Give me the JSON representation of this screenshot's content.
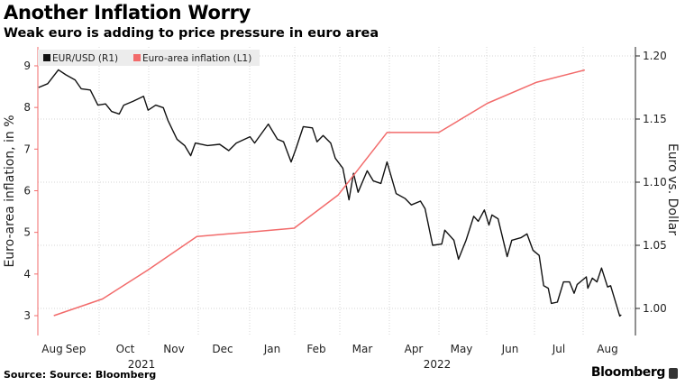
{
  "header": {
    "title": "Another Inflation Worry",
    "subtitle": "Weak euro is adding to price pressure in euro area"
  },
  "footer": {
    "source": "Source: Source: Bloomberg",
    "brand": "Bloomberg"
  },
  "colors": {
    "eurusd": "#111111",
    "inflation": "#f26b6b",
    "legend_bg": "#ececec",
    "grid": "#d6d6d6"
  },
  "chart_data": {
    "type": "line",
    "title": "Another Inflation Worry",
    "subtitle": "Weak euro is adding to price pressure in euro area",
    "legend": {
      "placement": "top-left",
      "entries": [
        "EUR/USD (R1)",
        "Euro-area inflation (L1)"
      ]
    },
    "ylabel_left": "Euro-area inflation, in %",
    "ylabel_right": "Euro vs. Dollar",
    "ylim_left": [
      2.75,
      9.3
    ],
    "ylim_right": [
      0.983,
      1.218
    ],
    "yticks_left": [
      "3",
      "4",
      "5",
      "6",
      "7",
      "8",
      "9"
    ],
    "yticks_right": [
      "1.00",
      "1.05",
      "1.10",
      "1.15",
      "1.20"
    ],
    "xtick_labels": [
      "Aug",
      "Sep",
      "Oct",
      "Nov",
      "Dec",
      "Jan",
      "Feb",
      "Mar",
      "Apr",
      "May",
      "Jun",
      "Jul",
      "Aug"
    ],
    "year_labels": [
      "2021",
      "2022"
    ],
    "grid": true,
    "series": [
      {
        "name": "EUR/USD (R1)",
        "axis": "right",
        "points": [
          [
            "2021-08-06",
            1.175
          ],
          [
            "2021-08-12",
            1.178
          ],
          [
            "2021-08-19",
            1.189
          ],
          [
            "2021-08-24",
            1.185
          ],
          [
            "2021-08-30",
            1.181
          ],
          [
            "2021-09-03",
            1.174
          ],
          [
            "2021-09-09",
            1.173
          ],
          [
            "2021-09-14",
            1.161
          ],
          [
            "2021-09-19",
            1.162
          ],
          [
            "2021-09-23",
            1.156
          ],
          [
            "2021-09-28",
            1.154
          ],
          [
            "2021-10-01",
            1.161
          ],
          [
            "2021-10-07",
            1.164
          ],
          [
            "2021-10-14",
            1.168
          ],
          [
            "2021-10-17",
            1.157
          ],
          [
            "2021-10-22",
            1.161
          ],
          [
            "2021-10-27",
            1.159
          ],
          [
            "2021-10-30",
            1.149
          ],
          [
            "2021-11-05",
            1.134
          ],
          [
            "2021-11-10",
            1.129
          ],
          [
            "2021-11-14",
            1.121
          ],
          [
            "2021-11-17",
            1.131
          ],
          [
            "2021-11-25",
            1.129
          ],
          [
            "2021-12-03",
            1.13
          ],
          [
            "2021-12-09",
            1.125
          ],
          [
            "2021-12-14",
            1.131
          ],
          [
            "2021-12-23",
            1.136
          ],
          [
            "2021-12-26",
            1.131
          ],
          [
            "2022-01-04",
            1.146
          ],
          [
            "2022-01-10",
            1.134
          ],
          [
            "2022-01-14",
            1.132
          ],
          [
            "2022-01-19",
            1.116
          ],
          [
            "2022-01-22",
            1.126
          ],
          [
            "2022-01-27",
            1.144
          ],
          [
            "2022-02-02",
            1.143
          ],
          [
            "2022-02-05",
            1.132
          ],
          [
            "2022-02-09",
            1.137
          ],
          [
            "2022-02-14",
            1.131
          ],
          [
            "2022-02-17",
            1.119
          ],
          [
            "2022-02-22",
            1.111
          ],
          [
            "2022-02-26",
            1.086
          ],
          [
            "2022-03-01",
            1.107
          ],
          [
            "2022-03-04",
            1.092
          ],
          [
            "2022-03-10",
            1.109
          ],
          [
            "2022-03-14",
            1.101
          ],
          [
            "2022-03-19",
            1.099
          ],
          [
            "2022-03-23",
            1.116
          ],
          [
            "2022-03-29",
            1.091
          ],
          [
            "2022-04-04",
            1.087
          ],
          [
            "2022-04-08",
            1.082
          ],
          [
            "2022-04-14",
            1.085
          ],
          [
            "2022-04-17",
            1.079
          ],
          [
            "2022-04-22",
            1.05
          ],
          [
            "2022-04-28",
            1.051
          ],
          [
            "2022-04-30",
            1.062
          ],
          [
            "2022-05-06",
            1.054
          ],
          [
            "2022-05-09",
            1.039
          ],
          [
            "2022-05-14",
            1.054
          ],
          [
            "2022-05-19",
            1.073
          ],
          [
            "2022-05-22",
            1.069
          ],
          [
            "2022-05-26",
            1.078
          ],
          [
            "2022-05-29",
            1.066
          ],
          [
            "2022-05-31",
            1.074
          ],
          [
            "2022-06-04",
            1.071
          ],
          [
            "2022-06-10",
            1.041
          ],
          [
            "2022-06-13",
            1.054
          ],
          [
            "2022-06-19",
            1.056
          ],
          [
            "2022-06-23",
            1.059
          ],
          [
            "2022-06-27",
            1.046
          ],
          [
            "2022-07-01",
            1.042
          ],
          [
            "2022-07-04",
            1.018
          ],
          [
            "2022-07-07",
            1.016
          ],
          [
            "2022-07-09",
            1.004
          ],
          [
            "2022-07-13",
            1.005
          ],
          [
            "2022-07-17",
            1.021
          ],
          [
            "2022-07-21",
            1.021
          ],
          [
            "2022-07-24",
            1.012
          ],
          [
            "2022-07-26",
            1.019
          ],
          [
            "2022-08-01",
            1.025
          ],
          [
            "2022-08-02",
            1.016
          ],
          [
            "2022-08-05",
            1.024
          ],
          [
            "2022-08-08",
            1.021
          ],
          [
            "2022-08-11",
            1.032
          ],
          [
            "2022-08-15",
            1.017
          ],
          [
            "2022-08-17",
            1.018
          ],
          [
            "2022-08-23",
            0.994
          ],
          [
            "2022-08-24",
            0.995
          ]
        ]
      },
      {
        "name": "Euro-area inflation (L1)",
        "axis": "left",
        "points": [
          [
            "2021-08-16",
            3.0
          ],
          [
            "2021-09-17",
            3.4
          ],
          [
            "2021-10-17",
            4.1
          ],
          [
            "2021-11-18",
            4.9
          ],
          [
            "2021-12-20",
            5.0
          ],
          [
            "2022-01-21",
            5.1
          ],
          [
            "2022-02-19",
            5.9
          ],
          [
            "2022-03-23",
            7.4
          ],
          [
            "2022-04-26",
            7.4
          ],
          [
            "2022-05-28",
            8.1
          ],
          [
            "2022-06-29",
            8.6
          ],
          [
            "2022-07-31",
            8.9
          ]
        ]
      }
    ]
  }
}
